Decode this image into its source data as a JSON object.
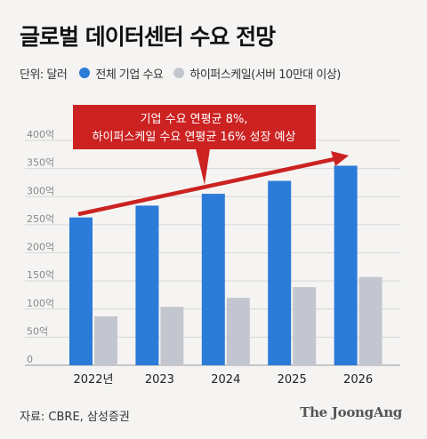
{
  "header": {
    "title": "글로벌 데이터센터 수요 전망"
  },
  "legend": {
    "unit": "단위: 달러",
    "items": [
      {
        "label": "전체 기업 수요",
        "color": "#2b7bd8"
      },
      {
        "label": "하이퍼스케일(서버 10만대 이상)",
        "color": "#c4c6cf"
      }
    ]
  },
  "annotation": {
    "line1": "기업 수요 연평균 8%,",
    "line2": "하이퍼스케일 수요 연평균 16% 성장 예상",
    "box_color": "#cc2222",
    "arrow_color": "#cc2222"
  },
  "chart_data": {
    "type": "bar",
    "categories": [
      "2022년",
      "2023",
      "2024",
      "2025",
      "2026"
    ],
    "series": [
      {
        "name": "전체 기업 수요",
        "values": [
          263,
          284,
          305,
          328,
          355
        ],
        "color": "#2b7bd8"
      },
      {
        "name": "하이퍼스케일(서버 10만대 이상)",
        "values": [
          87,
          104,
          120,
          139,
          157
        ],
        "color": "#c4c6cf"
      }
    ],
    "yticks": [
      "0",
      "50억",
      "100억",
      "150억",
      "200억",
      "250억",
      "300억",
      "350억",
      "400억"
    ],
    "ylim": [
      0,
      400
    ],
    "grid": true
  },
  "footer": {
    "source": "자료: CBRE, 삼성증권",
    "logo": "The JoongAng"
  }
}
